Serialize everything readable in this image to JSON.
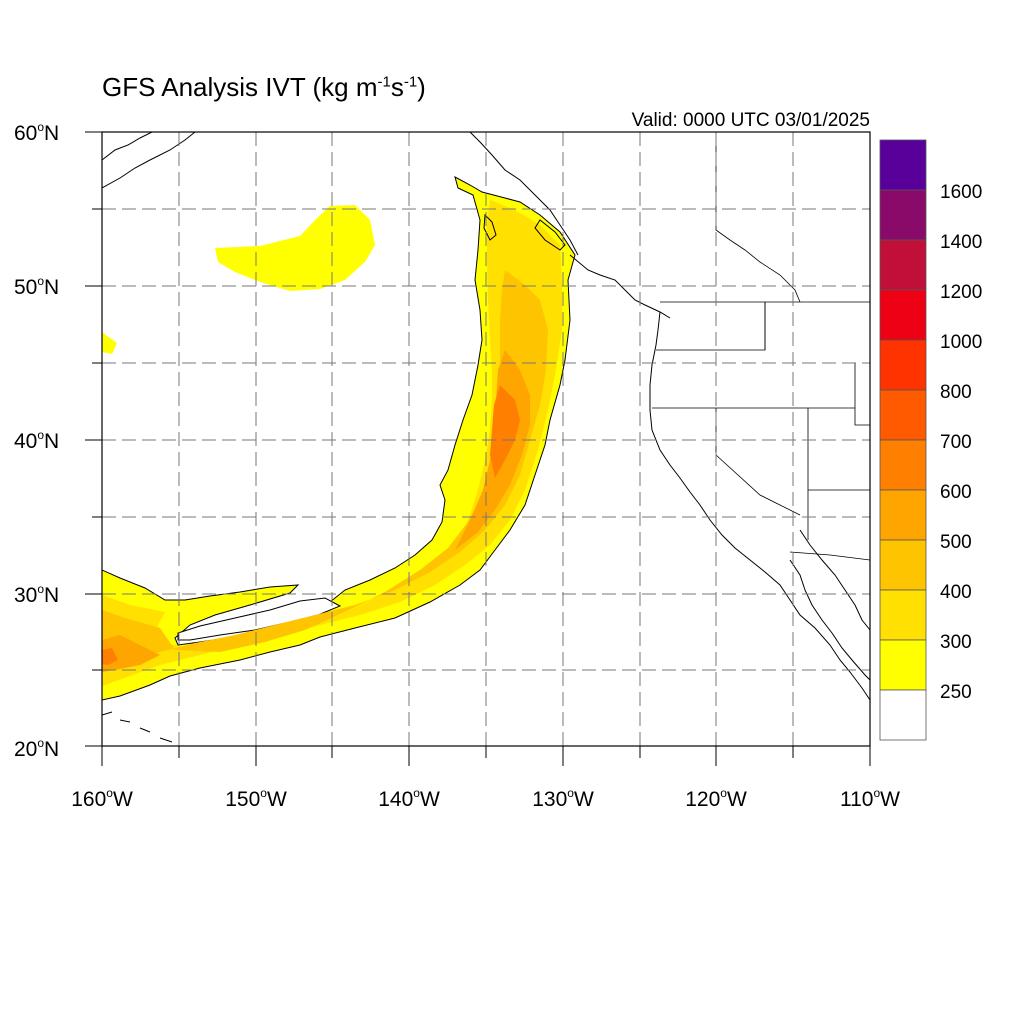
{
  "title": {
    "main": "GFS Analysis IVT (kg m",
    "exp1": "-1",
    "mid": "s",
    "exp2": "-1",
    "end": ")"
  },
  "valid": "Valid: 0000 UTC 03/01/2025",
  "axes": {
    "lat_labels": [
      {
        "deg": "60",
        "unit": "o",
        "hemi": "N"
      },
      {
        "deg": "50",
        "unit": "o",
        "hemi": "N"
      },
      {
        "deg": "40",
        "unit": "o",
        "hemi": "N"
      },
      {
        "deg": "30",
        "unit": "o",
        "hemi": "N"
      },
      {
        "deg": "20",
        "unit": "o",
        "hemi": "N"
      }
    ],
    "lon_labels": [
      {
        "deg": "160",
        "unit": "o",
        "hemi": "W"
      },
      {
        "deg": "150",
        "unit": "o",
        "hemi": "W"
      },
      {
        "deg": "140",
        "unit": "o",
        "hemi": "W"
      },
      {
        "deg": "130",
        "unit": "o",
        "hemi": "W"
      },
      {
        "deg": "120",
        "unit": "o",
        "hemi": "W"
      },
      {
        "deg": "110",
        "unit": "o",
        "hemi": "W"
      }
    ],
    "lat_range": [
      20,
      60
    ],
    "lon_range": [
      -160,
      -110
    ],
    "grid": "dashed, every 5 degrees"
  },
  "colorbar": {
    "labels": [
      "1600",
      "1400",
      "1200",
      "1000",
      "800",
      "700",
      "600",
      "500",
      "400",
      "300",
      "250"
    ],
    "colors": [
      "#5a009a",
      "#8a0a6a",
      "#c0103a",
      "#ee0015",
      "#ff3300",
      "#ff5a00",
      "#ff7f00",
      "#ffa500",
      "#ffc400",
      "#ffe000",
      "#ffff00",
      "#ffffff"
    ]
  }
}
